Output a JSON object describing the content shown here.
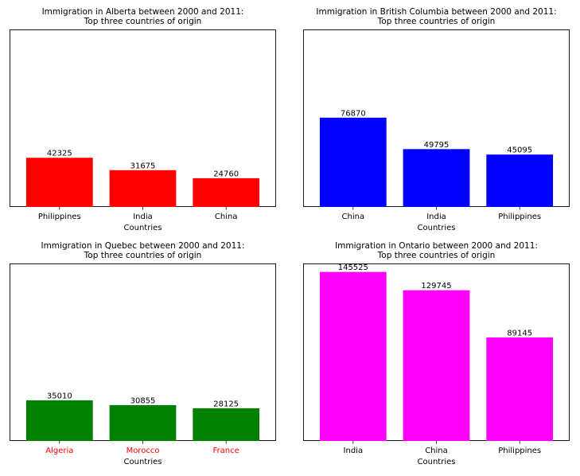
{
  "chart_data": [
    {
      "type": "bar",
      "title_lines": [
        "Immigration in Alberta between 2000 and 2011:",
        "Top three countries of origin"
      ],
      "xlabel": "Countries",
      "ylabel": "",
      "categories": [
        "Philippines",
        "India",
        "China"
      ],
      "values": [
        42325,
        31675,
        24760
      ],
      "data_labels": [
        "42325",
        "31675",
        "24760"
      ],
      "color": "#ff0000",
      "tick_label_color": "#000000",
      "ylim": [
        0,
        152800
      ],
      "grid": false
    },
    {
      "type": "bar",
      "title_lines": [
        "Immigration in British Columbia between 2000 and 2011:",
        "Top three countries of origin"
      ],
      "xlabel": "Countries",
      "ylabel": "",
      "categories": [
        "China",
        "India",
        "Philippines"
      ],
      "values": [
        76870,
        49795,
        45095
      ],
      "data_labels": [
        "76870",
        "49795",
        "45095"
      ],
      "color": "#0000ff",
      "tick_label_color": "#000000",
      "ylim": [
        0,
        152800
      ],
      "grid": false
    },
    {
      "type": "bar",
      "title_lines": [
        "Immigration in Quebec between 2000 and 2011:",
        "Top three countries of origin"
      ],
      "xlabel": "Countries",
      "ylabel": "",
      "categories": [
        "Algeria",
        "Morocco",
        "France"
      ],
      "values": [
        35010,
        30855,
        28125
      ],
      "data_labels": [
        "35010",
        "30855",
        "28125"
      ],
      "color": "#008000",
      "tick_label_color": "#ff0000",
      "ylim": [
        0,
        152800
      ],
      "grid": false
    },
    {
      "type": "bar",
      "title_lines": [
        "Immigration in Ontario between 2000 and 2011:",
        "Top three countries of origin"
      ],
      "xlabel": "Countries",
      "ylabel": "",
      "categories": [
        "India",
        "China",
        "Philippines"
      ],
      "values": [
        145525,
        129745,
        89145
      ],
      "data_labels": [
        "145525",
        "129745",
        "89145"
      ],
      "color": "#ff00ff",
      "tick_label_color": "#000000",
      "ylim": [
        0,
        152800
      ],
      "grid": false
    }
  ]
}
